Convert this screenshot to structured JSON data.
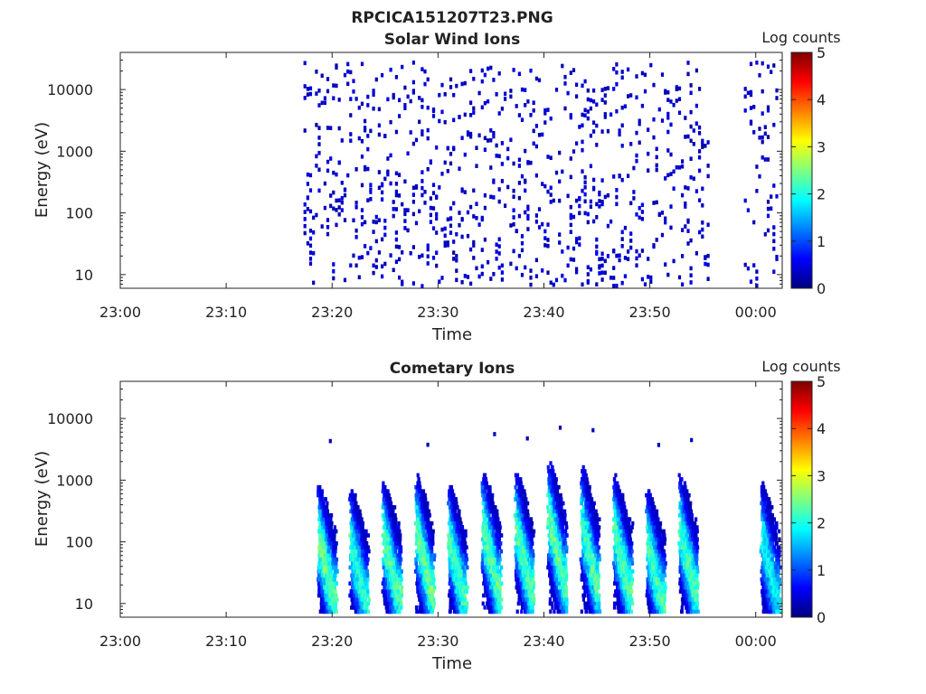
{
  "figure_title": "RPCICA151207T23.PNG",
  "colors": {
    "colormap": [
      "#00007f",
      "#0000ff",
      "#007fff",
      "#00ffff",
      "#7fff7f",
      "#ffff00",
      "#ff7f00",
      "#ff0000",
      "#7f0000"
    ],
    "axis": "#222222",
    "background": "#ffffff"
  },
  "chart_data": [
    {
      "type": "heatmap",
      "title": "Solar Wind Ions",
      "xlabel": "Time",
      "ylabel": "Energy (eV)",
      "x_ticks": [
        "23:00",
        "23:10",
        "23:20",
        "23:30",
        "23:40",
        "23:50",
        "00:00"
      ],
      "x_range_minutes": [
        0,
        62.5
      ],
      "y_scale": "log",
      "y_range": [
        6,
        40000
      ],
      "y_ticks": [
        "10",
        "100",
        "1000",
        "10000"
      ],
      "colorbar_label": "Log counts",
      "colorbar_ticks": [
        "0",
        "1",
        "2",
        "3",
        "4",
        "5"
      ],
      "colorbar_range": [
        0,
        5
      ],
      "data_start_minute": 17.3,
      "data_gap_minutes": [
        55.6,
        58.8
      ],
      "data_end_minute": 61.9,
      "typical_log_counts": 0.2,
      "pattern": "sparse scattered single counts from ~6 eV up to ~30000 eV"
    },
    {
      "type": "heatmap",
      "title": "Cometary Ions",
      "xlabel": "Time",
      "ylabel": "Energy (eV)",
      "x_ticks": [
        "23:00",
        "23:10",
        "23:20",
        "23:30",
        "23:40",
        "23:50",
        "00:00"
      ],
      "x_range_minutes": [
        0,
        62.5
      ],
      "y_scale": "log",
      "y_range": [
        6,
        40000
      ],
      "y_ticks": [
        "10",
        "100",
        "1000",
        "10000"
      ],
      "colorbar_label": "Log counts",
      "colorbar_ticks": [
        "0",
        "1",
        "2",
        "3",
        "4",
        "5"
      ],
      "colorbar_range": [
        0,
        5
      ],
      "pattern": "periodic curved ion bursts, energy sweeping ~10 eV to ~1000 eV",
      "bursts": [
        {
          "start_minute": 18.7,
          "peak_log_counts": 2.5,
          "max_energy_ev": 900
        },
        {
          "start_minute": 21.7,
          "peak_log_counts": 2.2,
          "max_energy_ev": 800
        },
        {
          "start_minute": 24.8,
          "peak_log_counts": 2.4,
          "max_energy_ev": 1000
        },
        {
          "start_minute": 27.9,
          "peak_log_counts": 2.5,
          "max_energy_ev": 1300
        },
        {
          "start_minute": 31.0,
          "peak_log_counts": 2.3,
          "max_energy_ev": 900
        },
        {
          "start_minute": 34.2,
          "peak_log_counts": 2.4,
          "max_energy_ev": 1500
        },
        {
          "start_minute": 37.3,
          "peak_log_counts": 2.4,
          "max_energy_ev": 1500
        },
        {
          "start_minute": 40.4,
          "peak_log_counts": 2.5,
          "max_energy_ev": 2200
        },
        {
          "start_minute": 43.5,
          "peak_log_counts": 2.3,
          "max_energy_ev": 1800
        },
        {
          "start_minute": 46.6,
          "peak_log_counts": 2.4,
          "max_energy_ev": 1300
        },
        {
          "start_minute": 49.7,
          "peak_log_counts": 2.3,
          "max_energy_ev": 800
        },
        {
          "start_minute": 52.8,
          "peak_log_counts": 2.3,
          "max_energy_ev": 1300
        },
        {
          "start_minute": 60.5,
          "peak_log_counts": 2.0,
          "max_energy_ev": 1000
        }
      ]
    }
  ]
}
